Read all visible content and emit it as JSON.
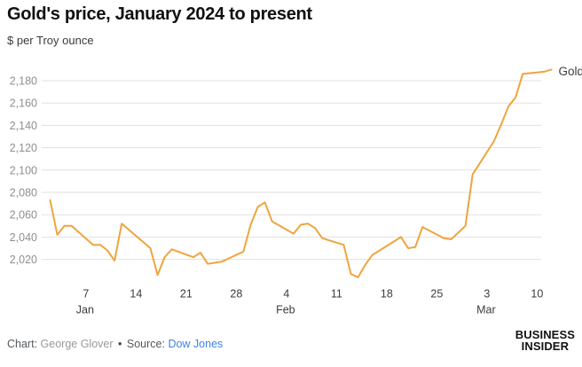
{
  "header": {
    "title": "Gold's price, January 2024 to present",
    "subtitle": "$ per Troy ounce"
  },
  "chart_data": {
    "type": "line",
    "title": "Gold's price, January 2024 to present",
    "ylabel": "$ per Troy ounce",
    "series_label": "Gold",
    "line_color": "#F0A43E",
    "grid": true,
    "legend_position": "right-of-last-point",
    "ylim": [
      2000,
      2195
    ],
    "yticks": [
      2020,
      2040,
      2060,
      2080,
      2100,
      2120,
      2140,
      2160,
      2180
    ],
    "ytick_labels": [
      "2,020",
      "2,040",
      "2,060",
      "2,080",
      "2,100",
      "2,120",
      "2,140",
      "2,160",
      "2,180"
    ],
    "xticks": [
      {
        "date": "Jan 7",
        "label": "7",
        "month": "Jan"
      },
      {
        "date": "Jan 14",
        "label": "14",
        "month": ""
      },
      {
        "date": "Jan 21",
        "label": "21",
        "month": ""
      },
      {
        "date": "Jan 28",
        "label": "28",
        "month": ""
      },
      {
        "date": "Feb 4",
        "label": "4",
        "month": "Feb"
      },
      {
        "date": "Feb 11",
        "label": "11",
        "month": ""
      },
      {
        "date": "Feb 18",
        "label": "18",
        "month": ""
      },
      {
        "date": "Feb 25",
        "label": "25",
        "month": ""
      },
      {
        "date": "Mar 3",
        "label": "3",
        "month": "Mar"
      },
      {
        "date": "Mar 10",
        "label": "10",
        "month": ""
      }
    ],
    "points": [
      [
        "Jan 2",
        2073
      ],
      [
        "Jan 3",
        2042
      ],
      [
        "Jan 4",
        2050
      ],
      [
        "Jan 5",
        2050
      ],
      [
        "Jan 8",
        2033
      ],
      [
        "Jan 9",
        2033
      ],
      [
        "Jan 10",
        2028
      ],
      [
        "Jan 11",
        2019
      ],
      [
        "Jan 12",
        2052
      ],
      [
        "Jan 16",
        2030
      ],
      [
        "Jan 17",
        2006
      ],
      [
        "Jan 18",
        2022
      ],
      [
        "Jan 19",
        2029
      ],
      [
        "Jan 22",
        2022
      ],
      [
        "Jan 23",
        2026
      ],
      [
        "Jan 24",
        2016
      ],
      [
        "Jan 25",
        2017
      ],
      [
        "Jan 26",
        2018
      ],
      [
        "Jan 29",
        2027
      ],
      [
        "Jan 30",
        2051
      ],
      [
        "Jan 31",
        2067
      ],
      [
        "Feb 1",
        2071
      ],
      [
        "Feb 2",
        2054
      ],
      [
        "Feb 5",
        2043
      ],
      [
        "Feb 6",
        2051
      ],
      [
        "Feb 7",
        2052
      ],
      [
        "Feb 8",
        2048
      ],
      [
        "Feb 9",
        2039
      ],
      [
        "Feb 12",
        2033
      ],
      [
        "Feb 13",
        2007
      ],
      [
        "Feb 14",
        2004
      ],
      [
        "Feb 15",
        2015
      ],
      [
        "Feb 16",
        2024
      ],
      [
        "Feb 20",
        2040
      ],
      [
        "Feb 21",
        2030
      ],
      [
        "Feb 22",
        2031
      ],
      [
        "Feb 23",
        2049
      ],
      [
        "Feb 26",
        2039
      ],
      [
        "Feb 27",
        2038
      ],
      [
        "Feb 28",
        2044
      ],
      [
        "Feb 29",
        2050
      ],
      [
        "Mar 1",
        2096
      ],
      [
        "Mar 4",
        2126
      ],
      [
        "Mar 5",
        2141
      ],
      [
        "Mar 6",
        2157
      ],
      [
        "Mar 7",
        2165
      ],
      [
        "Mar 8",
        2186
      ],
      [
        "Mar 11",
        2188
      ],
      [
        "Mar 12",
        2190
      ]
    ]
  },
  "footer": {
    "credit_label": "Chart:",
    "credit_value": "George Glover",
    "separator": "•",
    "source_label": "Source:",
    "source_value": "Dow Jones",
    "logo_line1": "BUSINESS",
    "logo_line2": "INSIDER"
  }
}
